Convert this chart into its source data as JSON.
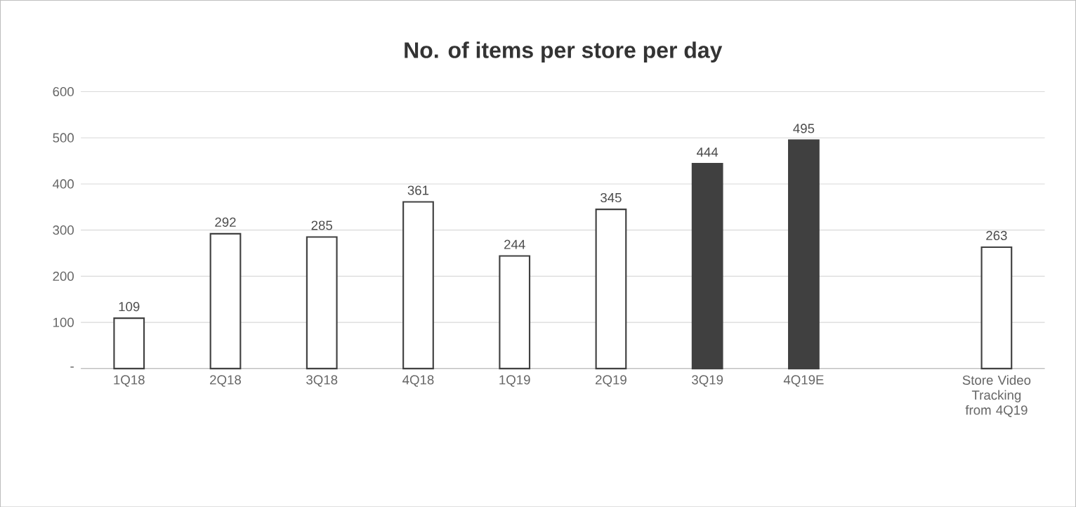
{
  "chart_data": {
    "type": "bar",
    "title": "No. of items per store per day",
    "categories": [
      "1Q18",
      "2Q18",
      "3Q18",
      "4Q18",
      "1Q19",
      "2Q19",
      "3Q19",
      "4Q19E",
      null,
      "Store Video Tracking from 4Q19"
    ],
    "values": [
      109,
      292,
      285,
      361,
      244,
      345,
      444,
      495,
      null,
      263
    ],
    "colors": [
      "#ffffff",
      "#ffffff",
      "#ffffff",
      "#ffffff",
      "#ffffff",
      "#ffffff",
      "#404040",
      "#404040",
      null,
      "#ffffff"
    ],
    "ylim": [
      0,
      600
    ],
    "yticks": [
      {
        "value": 0,
        "label": "-"
      },
      100,
      200,
      300,
      400,
      500,
      600
    ],
    "grid": "y",
    "data_labels": true
  }
}
